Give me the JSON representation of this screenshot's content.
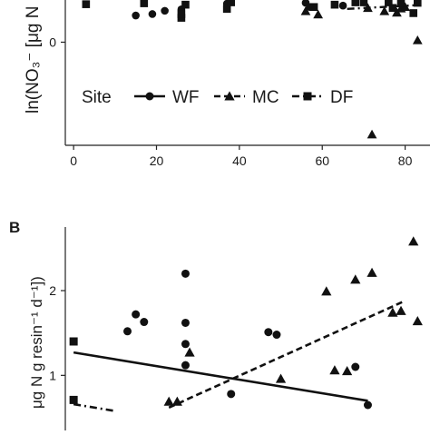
{
  "chart_data": [
    {
      "type": "scatter",
      "panel_label": "",
      "ylabel": "ln(NO₃⁻ [μg N",
      "xlabel": "",
      "x_ticks": [
        0,
        20,
        40,
        60,
        80
      ],
      "y_ticks": [
        0
      ],
      "xlim": [
        -2,
        86
      ],
      "ylim": [
        -2.2,
        0.9
      ],
      "legend": {
        "title": "Site",
        "placement": "inside-bottom-left",
        "entries": [
          {
            "name": "WF",
            "marker": "circle",
            "line": "solid"
          },
          {
            "name": "MC",
            "marker": "triangle",
            "line": "dashed"
          },
          {
            "name": "DF",
            "marker": "square",
            "line": "dotdash"
          }
        ]
      },
      "series": [
        {
          "name": "WF",
          "marker": "circle",
          "points": [
            [
              15,
              0.57
            ],
            [
              19,
              0.6
            ],
            [
              22,
              0.67
            ],
            [
              26,
              0.7
            ],
            [
              37,
              0.82
            ],
            [
              56,
              0.84
            ],
            [
              57,
              0.75
            ],
            [
              65,
              0.78
            ]
          ]
        },
        {
          "name": "MC",
          "marker": "triangle",
          "points": [
            [
              56,
              0.66
            ],
            [
              59,
              0.59
            ],
            [
              71,
              0.73
            ],
            [
              75,
              0.66
            ],
            [
              78,
              0.63
            ],
            [
              79,
              0.72
            ],
            [
              80,
              0.75
            ],
            [
              83,
              0.04
            ],
            [
              72,
              -1.97
            ]
          ]
        },
        {
          "name": "DF",
          "marker": "square",
          "points": [
            [
              3,
              0.81
            ],
            [
              17,
              0.83
            ],
            [
              26,
              0.52
            ],
            [
              26,
              0.6
            ],
            [
              27,
              0.8
            ],
            [
              37,
              0.71
            ],
            [
              38,
              0.85
            ],
            [
              58,
              0.75
            ],
            [
              63,
              0.8
            ],
            [
              68,
              0.85
            ],
            [
              70,
              0.85
            ],
            [
              76,
              0.85
            ],
            [
              77,
              0.73
            ],
            [
              79,
              0.83
            ],
            [
              82,
              0.62
            ],
            [
              83,
              0.84
            ]
          ]
        }
      ],
      "fit_lines": [
        {
          "name": "DF",
          "style": "dotdash",
          "from": [
            66,
            0.71
          ],
          "to": [
            83,
            0.79
          ]
        }
      ]
    },
    {
      "type": "scatter",
      "panel_label": "B",
      "ylabel": "μg N g resin⁻¹ d⁻¹])",
      "xlabel": "",
      "y_ticks": [
        1,
        2
      ],
      "xlim": [
        -2,
        86
      ],
      "ylim": [
        0.35,
        2.75
      ],
      "series": [
        {
          "name": "WF",
          "marker": "circle",
          "points": [
            [
              13,
              1.52
            ],
            [
              15,
              1.72
            ],
            [
              17,
              1.63
            ],
            [
              27,
              2.2
            ],
            [
              27,
              1.62
            ],
            [
              27,
              1.37
            ],
            [
              27,
              1.12
            ],
            [
              47,
              1.51
            ],
            [
              49,
              1.48
            ],
            [
              38,
              0.78
            ],
            [
              68,
              1.1
            ],
            [
              71,
              0.65
            ]
          ]
        },
        {
          "name": "MC",
          "marker": "triangle",
          "points": [
            [
              23,
              0.69
            ],
            [
              25,
              0.69
            ],
            [
              28,
              1.27
            ],
            [
              50,
              0.96
            ],
            [
              61,
              1.99
            ],
            [
              68,
              2.13
            ],
            [
              72,
              2.21
            ],
            [
              63,
              1.06
            ],
            [
              66,
              1.05
            ],
            [
              77,
              1.74
            ],
            [
              79,
              1.76
            ],
            [
              82,
              2.58
            ],
            [
              83,
              1.64
            ]
          ]
        },
        {
          "name": "DF",
          "marker": "square",
          "points": [
            [
              0,
              1.4
            ],
            [
              0,
              0.71
            ]
          ]
        }
      ],
      "fit_lines": [
        {
          "name": "WF",
          "style": "solid",
          "from": [
            0,
            1.27
          ],
          "to": [
            71,
            0.7
          ]
        },
        {
          "name": "MC",
          "style": "dashed",
          "from": [
            23,
            0.62
          ],
          "to": [
            80,
            1.88
          ]
        },
        {
          "name": "DF",
          "style": "dotdash",
          "from": [
            0,
            0.66
          ],
          "to": [
            10,
            0.58
          ]
        }
      ]
    }
  ]
}
